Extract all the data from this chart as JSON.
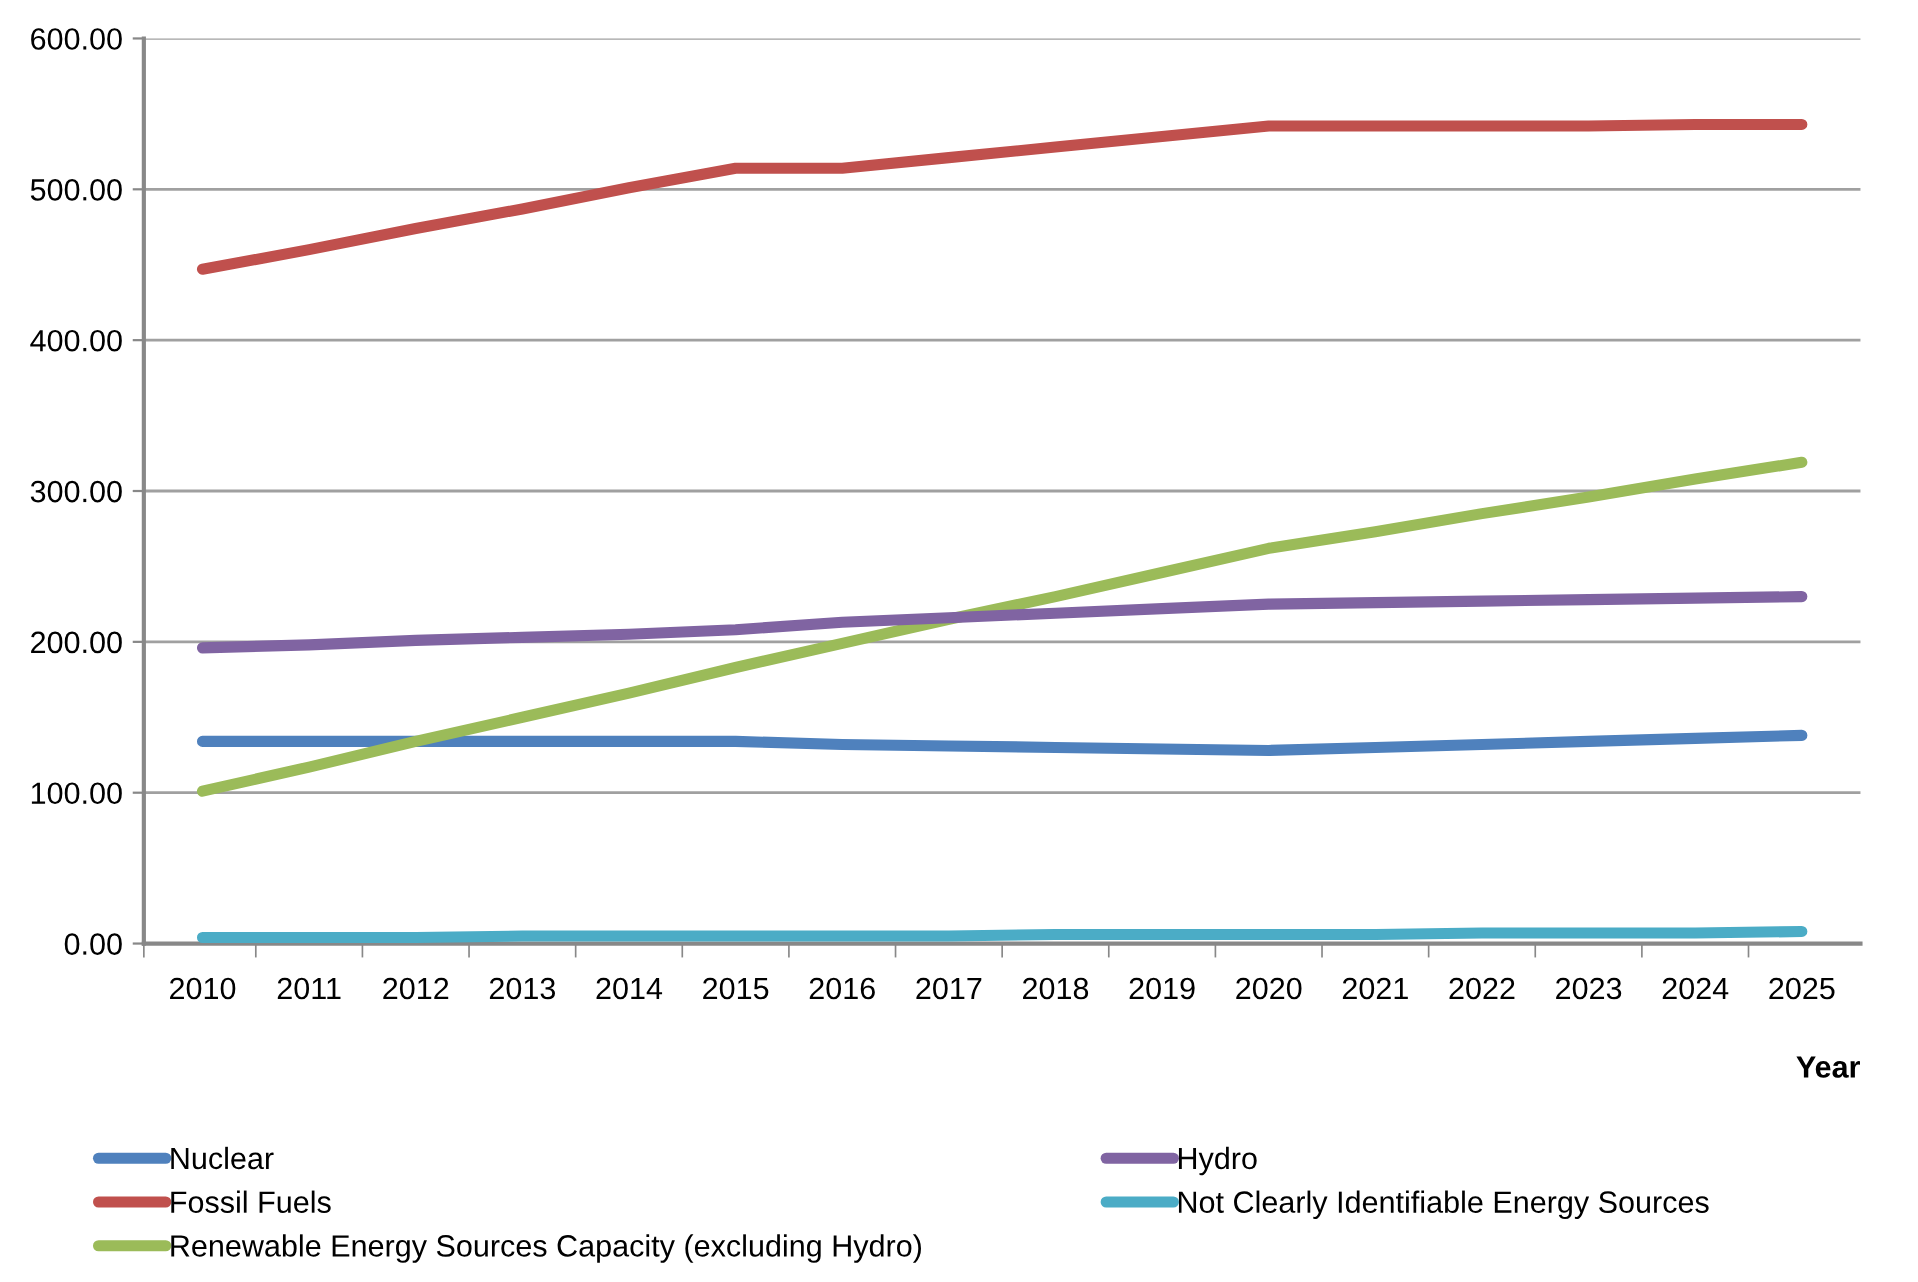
{
  "chart_data": {
    "type": "line",
    "xlabel": "Year",
    "categories": [
      "2010",
      "2011",
      "2012",
      "2013",
      "2014",
      "2015",
      "2016",
      "2017",
      "2018",
      "2019",
      "2020",
      "2021",
      "2022",
      "2023",
      "2024",
      "2025"
    ],
    "series": [
      {
        "name": "Nuclear",
        "color": "#4f81bd",
        "values": [
          134,
          134,
          134,
          134,
          134,
          134,
          132,
          131,
          130,
          129,
          128,
          130,
          132,
          134,
          136,
          138
        ]
      },
      {
        "name": "Fossil Fuels",
        "color": "#c0504d",
        "values": [
          447,
          460,
          474,
          487,
          501,
          514,
          514,
          521,
          528,
          535,
          542,
          542,
          542,
          542,
          543,
          543
        ]
      },
      {
        "name": "Renewable Energy Sources Capacity (excluding Hydro)",
        "color": "#9bbb59",
        "values": [
          101,
          117,
          134,
          150,
          166,
          183,
          199,
          215,
          230,
          246,
          262,
          273,
          285,
          296,
          308,
          319
        ]
      },
      {
        "name": "Hydro",
        "color": "#8064a2",
        "values": [
          196,
          198,
          201,
          203,
          205,
          208,
          213,
          216,
          219,
          222,
          225,
          226,
          227,
          228,
          229,
          230
        ]
      },
      {
        "name": "Not Clearly Identifiable Energy Sources",
        "color": "#4bacc6",
        "values": [
          4,
          4,
          4,
          5,
          5,
          5,
          5,
          5,
          6,
          6,
          6,
          6,
          7,
          7,
          7,
          8
        ]
      }
    ],
    "ylim": [
      0,
      600
    ],
    "yticks": [
      {
        "value": 0,
        "label": "0.00"
      },
      {
        "value": 100,
        "label": "100.00"
      },
      {
        "value": 200,
        "label": "200.00"
      },
      {
        "value": 300,
        "label": "300.00"
      },
      {
        "value": 400,
        "label": "400.00"
      },
      {
        "value": 500,
        "label": "500.00"
      },
      {
        "value": 600,
        "label": "600.00"
      }
    ],
    "grid": "y",
    "legend": "bottom",
    "marker": "none",
    "line_style": "solid"
  }
}
